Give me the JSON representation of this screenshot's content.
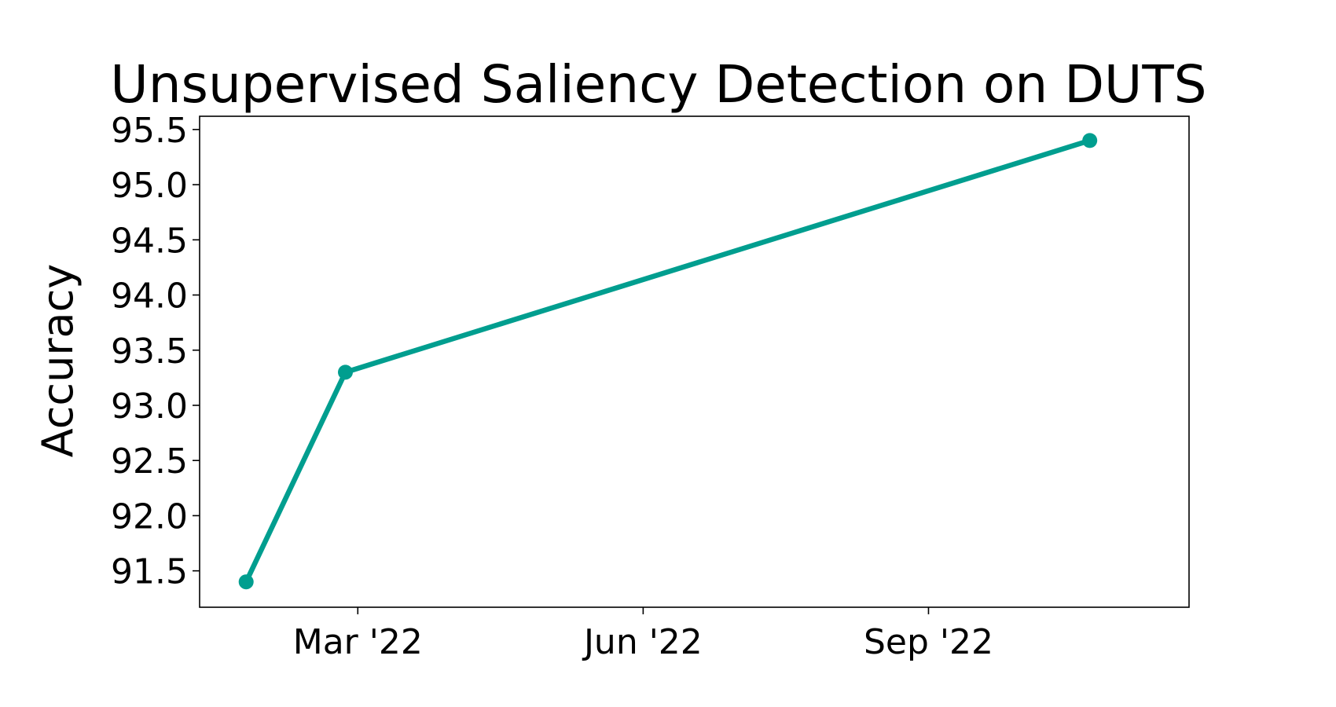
{
  "chart_data": {
    "type": "line",
    "title": "Unsupervised Saliency Detection on DUTS",
    "xlabel": "",
    "ylabel": "Accuracy",
    "x_axis_type": "date",
    "xlim": [
      "2022-01-09",
      "2022-11-24"
    ],
    "ylim": [
      91.17,
      95.62
    ],
    "x_ticks": [
      {
        "date": "2022-03-01",
        "label": "Mar '22"
      },
      {
        "date": "2022-06-01",
        "label": "Jun '22"
      },
      {
        "date": "2022-09-01",
        "label": "Sep '22"
      }
    ],
    "y_ticks": [
      91.5,
      92.0,
      92.5,
      93.0,
      93.5,
      94.0,
      94.5,
      95.0,
      95.5
    ],
    "y_tick_labels": [
      "91.5",
      "92.0",
      "92.5",
      "93.0",
      "93.5",
      "94.0",
      "94.5",
      "95.0",
      "95.5"
    ],
    "grid": false,
    "series": [
      {
        "color": "#009e8f",
        "points": [
          {
            "x": "2022-01-24",
            "y": 91.4
          },
          {
            "x": "2022-02-25",
            "y": 93.3
          },
          {
            "x": "2022-10-23",
            "y": 95.4
          }
        ]
      }
    ]
  }
}
